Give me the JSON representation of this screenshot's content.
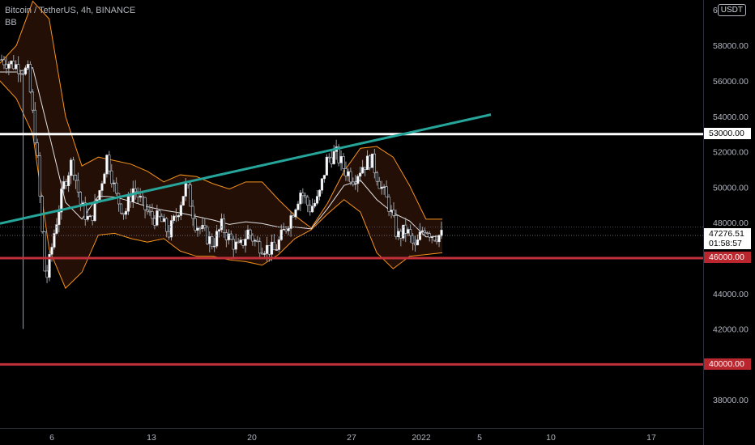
{
  "legend": {
    "symbol": "Bitcoin / TetherUS, 4h, BINANCE",
    "indicator": "BB"
  },
  "axis": {
    "currency_badge": "USDT",
    "top_partial_label": "6",
    "y_ticks": [
      "58000.00",
      "56000.00",
      "54000.00",
      "52000.00",
      "50000.00",
      "48000.00",
      "44000.00",
      "42000.00",
      "38000.00"
    ],
    "x_ticks": [
      "6",
      "13",
      "20",
      "27",
      "2022",
      "5",
      "10",
      "17"
    ]
  },
  "levels": {
    "resistance": "53000.00",
    "support": "46000.00",
    "lower": "40000.00"
  },
  "current": {
    "price": "47276.51",
    "countdown": "01:58:57"
  },
  "colors": {
    "background": "#000000",
    "up_candle": "#ffffff",
    "down_candle": "#000000",
    "band": "#f7931a",
    "band_fill": "#2a1208",
    "basis": "#e0e0e0",
    "trendline": "#26a69a",
    "white_level": "#ffffff",
    "red_level": "#c0303a"
  },
  "chart_data": {
    "type": "candlestick",
    "ylim": [
      36000,
      60000
    ],
    "x_ticks": [
      "6",
      "13",
      "20",
      "27",
      "2022",
      "5",
      "10",
      "17"
    ],
    "levels": [
      53000,
      46000,
      40000
    ],
    "series": [
      {
        "name": "Bitcoin / TetherUS, 4h, BINANCE",
        "close_path": [
          57200,
          57000,
          56800,
          56500,
          52000,
          44500,
          47500,
          50000,
          51500,
          49000,
          48000,
          49500,
          51800,
          49500,
          48500,
          50000,
          49000,
          48300,
          48200,
          47400,
          48600,
          50200,
          48000,
          47400,
          46800,
          47800,
          47000,
          46500,
          47500,
          46800,
          46600,
          46400,
          47400,
          48500,
          49800,
          48800,
          49300,
          51600,
          51900,
          51000,
          50500,
          51200,
          51600,
          50200,
          49000,
          47200,
          47600,
          46500,
          47800,
          47300,
          47276
        ]
      },
      {
        "name": "BB",
        "upper_path": [
          57000,
          58000,
          60500,
          59500,
          54000,
          51200,
          51700,
          51500,
          51300,
          50900,
          50300,
          50700,
          50600,
          50200,
          49900,
          50300,
          50300,
          49300,
          48400,
          47700,
          49100,
          50900,
          52200,
          52300,
          51700,
          50100,
          48200,
          48200
        ]
      },
      {
        "name": "BB lower",
        "lower_path": [
          56000,
          55000,
          53000,
          46500,
          44300,
          45200,
          47300,
          47400,
          47100,
          46900,
          47100,
          46400,
          46100,
          46100,
          45900,
          45800,
          45600,
          46200,
          47100,
          47600,
          48500,
          49300,
          48600,
          46300,
          45400,
          46100,
          46200,
          46300
        ]
      }
    ]
  }
}
